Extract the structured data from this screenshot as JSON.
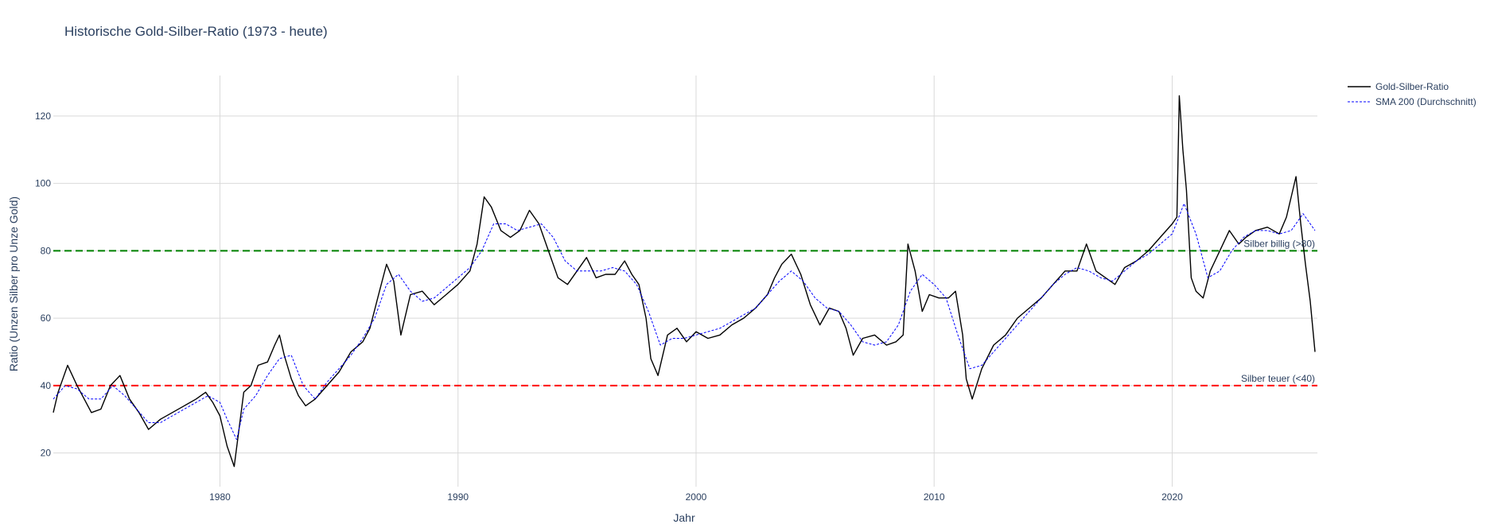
{
  "chart_data": {
    "type": "line",
    "title": "Historische Gold-Silber-Ratio (1973 - heute)",
    "xlabel": "Jahr",
    "ylabel": "Ratio (Unzen Silber pro Unze Gold)",
    "xlim": [
      1973.0,
      2026.1
    ],
    "ylim": [
      10,
      132
    ],
    "x_ticks": [
      1980,
      1990,
      2000,
      2010,
      2020
    ],
    "y_ticks": [
      20,
      40,
      60,
      80,
      100,
      120
    ],
    "grid": true,
    "legend_position": "top-right",
    "series": [
      {
        "name": "Gold-Silber-Ratio",
        "color": "#000000",
        "dash": "solid",
        "x": [
          1973.0,
          1973.2,
          1973.6,
          1974.0,
          1974.3,
          1974.6,
          1975.0,
          1975.4,
          1975.8,
          1976.2,
          1976.6,
          1977.0,
          1977.5,
          1978.0,
          1978.5,
          1979.0,
          1979.4,
          1979.7,
          1980.0,
          1980.3,
          1980.6,
          1981.0,
          1981.3,
          1981.6,
          1982.0,
          1982.3,
          1982.5,
          1982.7,
          1983.0,
          1983.3,
          1983.6,
          1984.0,
          1984.5,
          1985.0,
          1985.5,
          1986.0,
          1986.3,
          1986.7,
          1987.0,
          1987.3,
          1987.6,
          1988.0,
          1988.5,
          1989.0,
          1989.5,
          1990.0,
          1990.5,
          1990.8,
          1991.1,
          1991.4,
          1991.8,
          1992.2,
          1992.6,
          1993.0,
          1993.4,
          1993.8,
          1994.2,
          1994.6,
          1995.0,
          1995.4,
          1995.8,
          1996.2,
          1996.6,
          1997.0,
          1997.3,
          1997.6,
          1997.9,
          1998.1,
          1998.4,
          1998.8,
          1999.2,
          1999.6,
          2000.0,
          2000.5,
          2001.0,
          2001.5,
          2002.0,
          2002.5,
          2003.0,
          2003.3,
          2003.6,
          2004.0,
          2004.4,
          2004.8,
          2005.2,
          2005.6,
          2006.0,
          2006.3,
          2006.6,
          2007.0,
          2007.5,
          2008.0,
          2008.4,
          2008.7,
          2008.9,
          2009.2,
          2009.5,
          2009.8,
          2010.2,
          2010.6,
          2010.9,
          2011.2,
          2011.35,
          2011.6,
          2012.0,
          2012.5,
          2013.0,
          2013.5,
          2014.0,
          2014.5,
          2015.0,
          2015.5,
          2016.0,
          2016.4,
          2016.8,
          2017.2,
          2017.6,
          2018.0,
          2018.5,
          2019.0,
          2019.5,
          2020.0,
          2020.2,
          2020.3,
          2020.45,
          2020.6,
          2020.8,
          2021.0,
          2021.3,
          2021.6,
          2022.0,
          2022.4,
          2022.8,
          2023.1,
          2023.5,
          2024.0,
          2024.5,
          2024.8,
          2025.0,
          2025.2,
          2025.4,
          2025.6,
          2025.8,
          2026.0
        ],
        "y": [
          32,
          38,
          46,
          40,
          36,
          32,
          33,
          40,
          43,
          36,
          32,
          27,
          30,
          32,
          34,
          36,
          38,
          35,
          31,
          22,
          16,
          38,
          40,
          46,
          47,
          52,
          55,
          49,
          42,
          37,
          34,
          36,
          40,
          44,
          50,
          53,
          57,
          68,
          76,
          71,
          55,
          67,
          68,
          64,
          67,
          70,
          74,
          82,
          96,
          93,
          86,
          84,
          86,
          92,
          88,
          80,
          72,
          70,
          74,
          78,
          72,
          73,
          73,
          77,
          73,
          70,
          60,
          48,
          43,
          55,
          57,
          53,
          56,
          54,
          55,
          58,
          60,
          63,
          67,
          72,
          76,
          79,
          73,
          64,
          58,
          63,
          62,
          57,
          49,
          54,
          55,
          52,
          53,
          55,
          82,
          74,
          62,
          67,
          66,
          66,
          68,
          55,
          42,
          36,
          45,
          52,
          55,
          60,
          63,
          66,
          70,
          74,
          74,
          82,
          74,
          72,
          70,
          75,
          77,
          80,
          84,
          88,
          90,
          126,
          110,
          98,
          72,
          68,
          66,
          74,
          80,
          86,
          82,
          84,
          86,
          87,
          85,
          90,
          96,
          102,
          88,
          76,
          65,
          50
        ]
      },
      {
        "name": "SMA 200 (Durchschnitt)",
        "color": "#0000ff",
        "dash": "dot",
        "x": [
          1973.0,
          1973.5,
          1974.0,
          1974.5,
          1975.0,
          1975.5,
          1976.0,
          1976.5,
          1977.0,
          1977.5,
          1978.0,
          1978.5,
          1979.0,
          1979.5,
          1980.0,
          1980.3,
          1980.7,
          1981.0,
          1981.5,
          1982.0,
          1982.5,
          1983.0,
          1983.5,
          1984.0,
          1984.5,
          1985.0,
          1985.5,
          1986.0,
          1986.5,
          1987.0,
          1987.5,
          1988.0,
          1988.5,
          1989.0,
          1989.5,
          1990.0,
          1990.5,
          1991.0,
          1991.5,
          1992.0,
          1992.5,
          1993.0,
          1993.5,
          1994.0,
          1994.5,
          1995.0,
          1995.5,
          1996.0,
          1996.5,
          1997.0,
          1997.5,
          1998.0,
          1998.5,
          1999.0,
          1999.5,
          2000.0,
          2000.5,
          2001.0,
          2001.5,
          2002.0,
          2002.5,
          2003.0,
          2003.5,
          2004.0,
          2004.5,
          2005.0,
          2005.5,
          2006.0,
          2006.5,
          2007.0,
          2007.5,
          2008.0,
          2008.5,
          2009.0,
          2009.5,
          2010.0,
          2010.5,
          2011.0,
          2011.5,
          2012.0,
          2012.5,
          2013.0,
          2013.5,
          2014.0,
          2014.5,
          2015.0,
          2015.5,
          2016.0,
          2016.5,
          2017.0,
          2017.5,
          2018.0,
          2018.5,
          2019.0,
          2019.5,
          2020.0,
          2020.5,
          2021.0,
          2021.5,
          2022.0,
          2022.5,
          2023.0,
          2023.5,
          2024.0,
          2024.5,
          2025.0,
          2025.5,
          2026.0
        ],
        "y": [
          36,
          40,
          39,
          36,
          36,
          40,
          37,
          33,
          29,
          29,
          31,
          33,
          35,
          37,
          35,
          30,
          24,
          33,
          37,
          43,
          48,
          49,
          40,
          36,
          41,
          45,
          49,
          54,
          60,
          70,
          73,
          68,
          65,
          66,
          69,
          72,
          75,
          80,
          88,
          88,
          86,
          87,
          88,
          84,
          77,
          74,
          74,
          74,
          75,
          74,
          70,
          62,
          52,
          54,
          54,
          55,
          56,
          57,
          59,
          61,
          63,
          67,
          71,
          74,
          71,
          66,
          63,
          62,
          58,
          53,
          52,
          53,
          58,
          68,
          73,
          70,
          66,
          55,
          45,
          46,
          50,
          54,
          58,
          62,
          66,
          70,
          73,
          75,
          74,
          72,
          71,
          74,
          77,
          79,
          82,
          85,
          94,
          85,
          72,
          74,
          80,
          84,
          86,
          86,
          85,
          86,
          91,
          86
        ]
      }
    ],
    "reference_lines": [
      {
        "y": 80,
        "color": "#008000",
        "label": "Silber billig (>80)"
      },
      {
        "y": 40,
        "color": "#ff0000",
        "label": "Silber teuer (<40)"
      }
    ]
  }
}
